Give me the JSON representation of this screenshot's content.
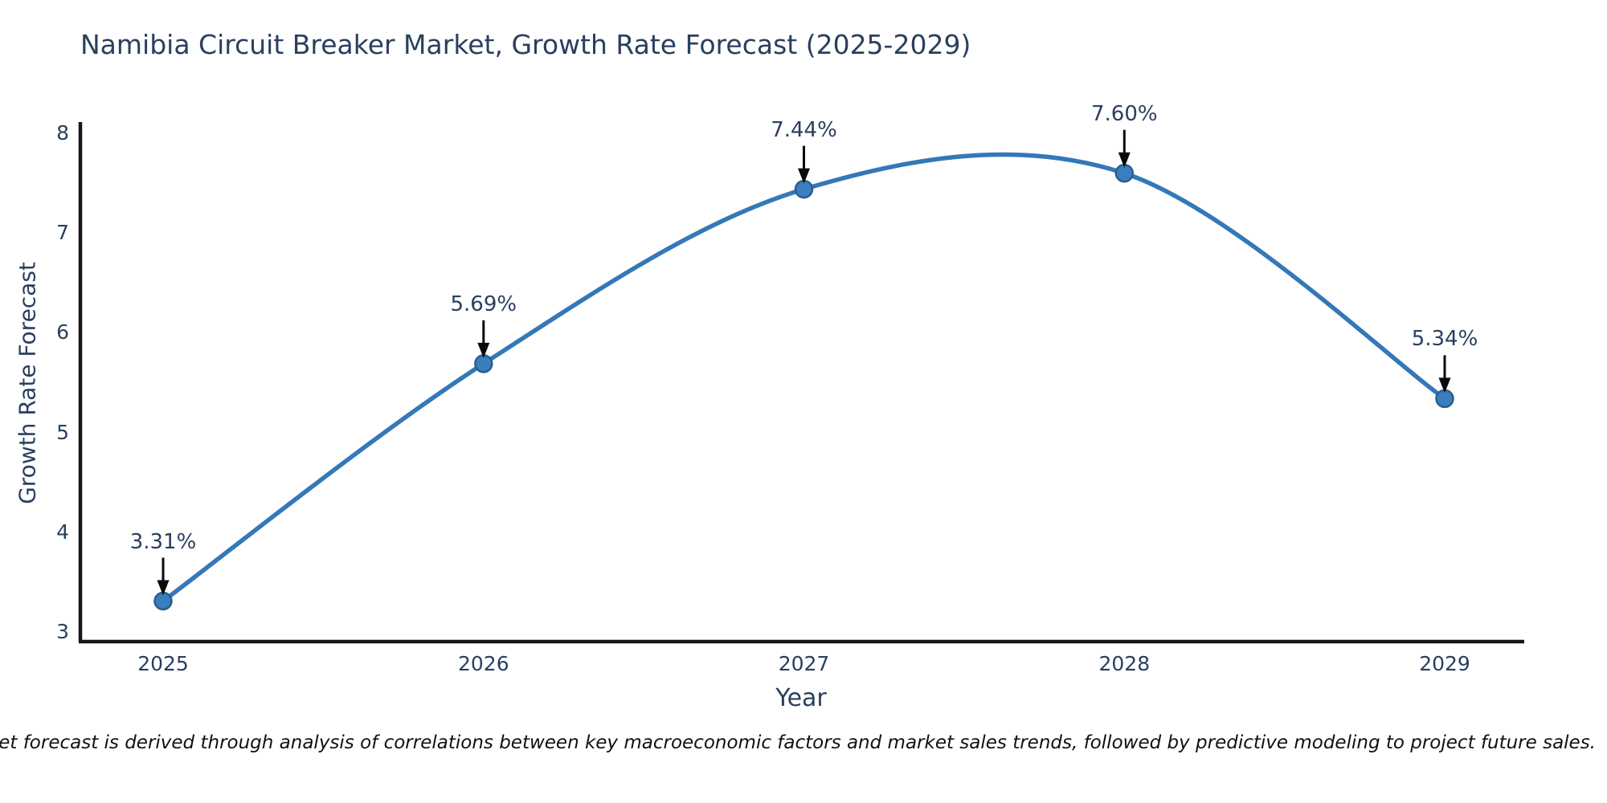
{
  "chart_data": {
    "type": "line",
    "title": "Namibia Circuit Breaker Market, Growth Rate Forecast (2025-2029)",
    "x": [
      2025,
      2026,
      2027,
      2028,
      2029
    ],
    "series": [
      {
        "name": "Growth Rate Forecast",
        "values": [
          3.31,
          5.69,
          7.44,
          7.6,
          5.34
        ]
      }
    ],
    "point_labels": [
      "3.31%",
      "5.69%",
      "7.44%",
      "7.60%",
      "5.34%"
    ],
    "xlabel": "Year",
    "ylabel": "Growth Rate Forecast",
    "ylim": [
      3,
      8
    ],
    "yticks": [
      3,
      4,
      5,
      6,
      7,
      8
    ],
    "xticks": [
      "2025",
      "2026",
      "2027",
      "2028",
      "2029"
    ],
    "grid": false,
    "legend": "none",
    "line_shape": "spline",
    "annotations_style": "down-arrow-to-point",
    "colors": {
      "line": "#3478b8",
      "marker_fill": "#3b7ebf",
      "marker_edge": "#295f8d",
      "arrow": "#0a0a0a",
      "axis": "#161616",
      "text": "#2a3f5f",
      "background": "#ffffff"
    }
  },
  "note": "Note: The market forecast is derived through analysis of correlations between key macroeconomic factors and market sales trends, followed by predictive modeling to project future sales."
}
